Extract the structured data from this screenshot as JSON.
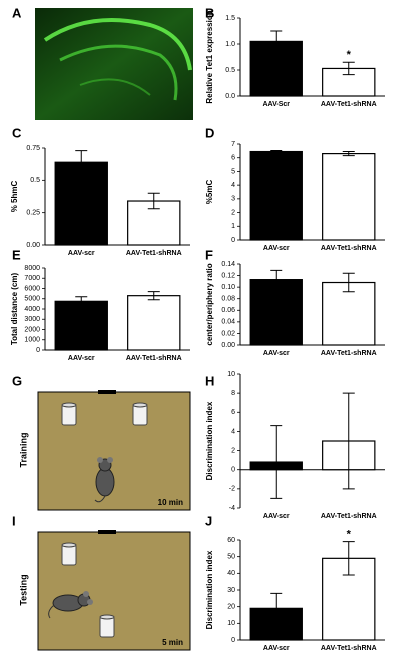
{
  "chart_data": [
    {
      "type": "bar",
      "panel": "B",
      "ylabel": "Relative Tet1 expression",
      "categories": [
        "AAV-Scr",
        "AAV-Tet1-shRNA"
      ],
      "values": [
        1.05,
        0.53
      ],
      "errors": [
        0.2,
        0.12
      ],
      "colors": [
        "#000000",
        "#ffffff"
      ],
      "annotations": [
        null,
        "*"
      ],
      "ylim": [
        0,
        1.5
      ],
      "yticks": [
        {
          "value": 0,
          "label": "0.0"
        },
        0.5,
        {
          "value": 1,
          "label": "1.0"
        },
        1.5
      ]
    },
    {
      "type": "bar",
      "panel": "C",
      "ylabel": "% 5hmC",
      "categories": [
        "AAV-scr",
        "AAV-Tet1-shRNA"
      ],
      "values": [
        0.64,
        0.34
      ],
      "errors": [
        0.09,
        0.06
      ],
      "colors": [
        "#000000",
        "#ffffff"
      ],
      "ylim": [
        0,
        0.75
      ],
      "yticks": [
        {
          "value": 0,
          "label": "0.00"
        },
        0.25,
        {
          "value": 0.5,
          "label": "0.5"
        },
        0.75
      ]
    },
    {
      "type": "bar",
      "panel": "D",
      "ylabel": "%5mC",
      "categories": [
        "AAV-scr",
        "AAV-Tet1-shRNA"
      ],
      "values": [
        6.45,
        6.3
      ],
      "errors": [
        0.08,
        0.15
      ],
      "colors": [
        "#000000",
        "#ffffff"
      ],
      "ylim": [
        0,
        7
      ],
      "yticks": [
        0,
        1,
        2,
        3,
        4,
        5,
        6,
        7
      ]
    },
    {
      "type": "bar",
      "panel": "E",
      "ylabel": "Total distance (cm)",
      "categories": [
        "AAV-scr",
        "AAV-Tet1-shRNA"
      ],
      "values": [
        4750,
        5300
      ],
      "errors": [
        450,
        400
      ],
      "colors": [
        "#000000",
        "#ffffff"
      ],
      "ylim": [
        0,
        8000
      ],
      "yticks": [
        0,
        1000,
        2000,
        3000,
        4000,
        5000,
        6000,
        7000,
        8000
      ]
    },
    {
      "type": "bar",
      "panel": "F",
      "ylabel": "center/periphery ratio",
      "categories": [
        "AAV-scr",
        "AAV-Tet1-shRNA"
      ],
      "values": [
        0.113,
        0.108
      ],
      "errors": [
        0.016,
        0.016
      ],
      "colors": [
        "#000000",
        "#ffffff"
      ],
      "ylim": [
        0,
        0.14
      ],
      "yticks": [
        {
          "value": 0,
          "label": "0.00"
        },
        0.02,
        0.04,
        0.06,
        0.08,
        {
          "value": 0.1,
          "label": "0.10"
        },
        0.12,
        0.14
      ]
    },
    {
      "type": "bar",
      "panel": "H",
      "ylabel": "Discrimination index",
      "categories": [
        "AAV-scr",
        "AAV-Tet1-shRNA"
      ],
      "values": [
        0.8,
        3
      ],
      "errors": [
        3.8,
        5
      ],
      "colors": [
        "#000000",
        "#ffffff"
      ],
      "ylim": [
        -4,
        10
      ],
      "yticks": [
        -4,
        -2,
        0,
        2,
        4,
        6,
        8,
        10
      ]
    },
    {
      "type": "bar",
      "panel": "J",
      "ylabel": "Discrimination index",
      "categories": [
        "AAV-scr",
        "AAV-Tet1-shRNA"
      ],
      "values": [
        19,
        49
      ],
      "errors": [
        9,
        10
      ],
      "colors": [
        "#000000",
        "#ffffff"
      ],
      "annotations": [
        null,
        "*"
      ],
      "ylim": [
        0,
        60
      ],
      "yticks": [
        0,
        10,
        20,
        30,
        40,
        50,
        60
      ]
    }
  ],
  "images": [
    {
      "panel": "A"
    },
    {
      "panel": "G",
      "label": "Training",
      "time": "10 min"
    },
    {
      "panel": "I",
      "label": "Testing",
      "time": "5 min"
    }
  ]
}
